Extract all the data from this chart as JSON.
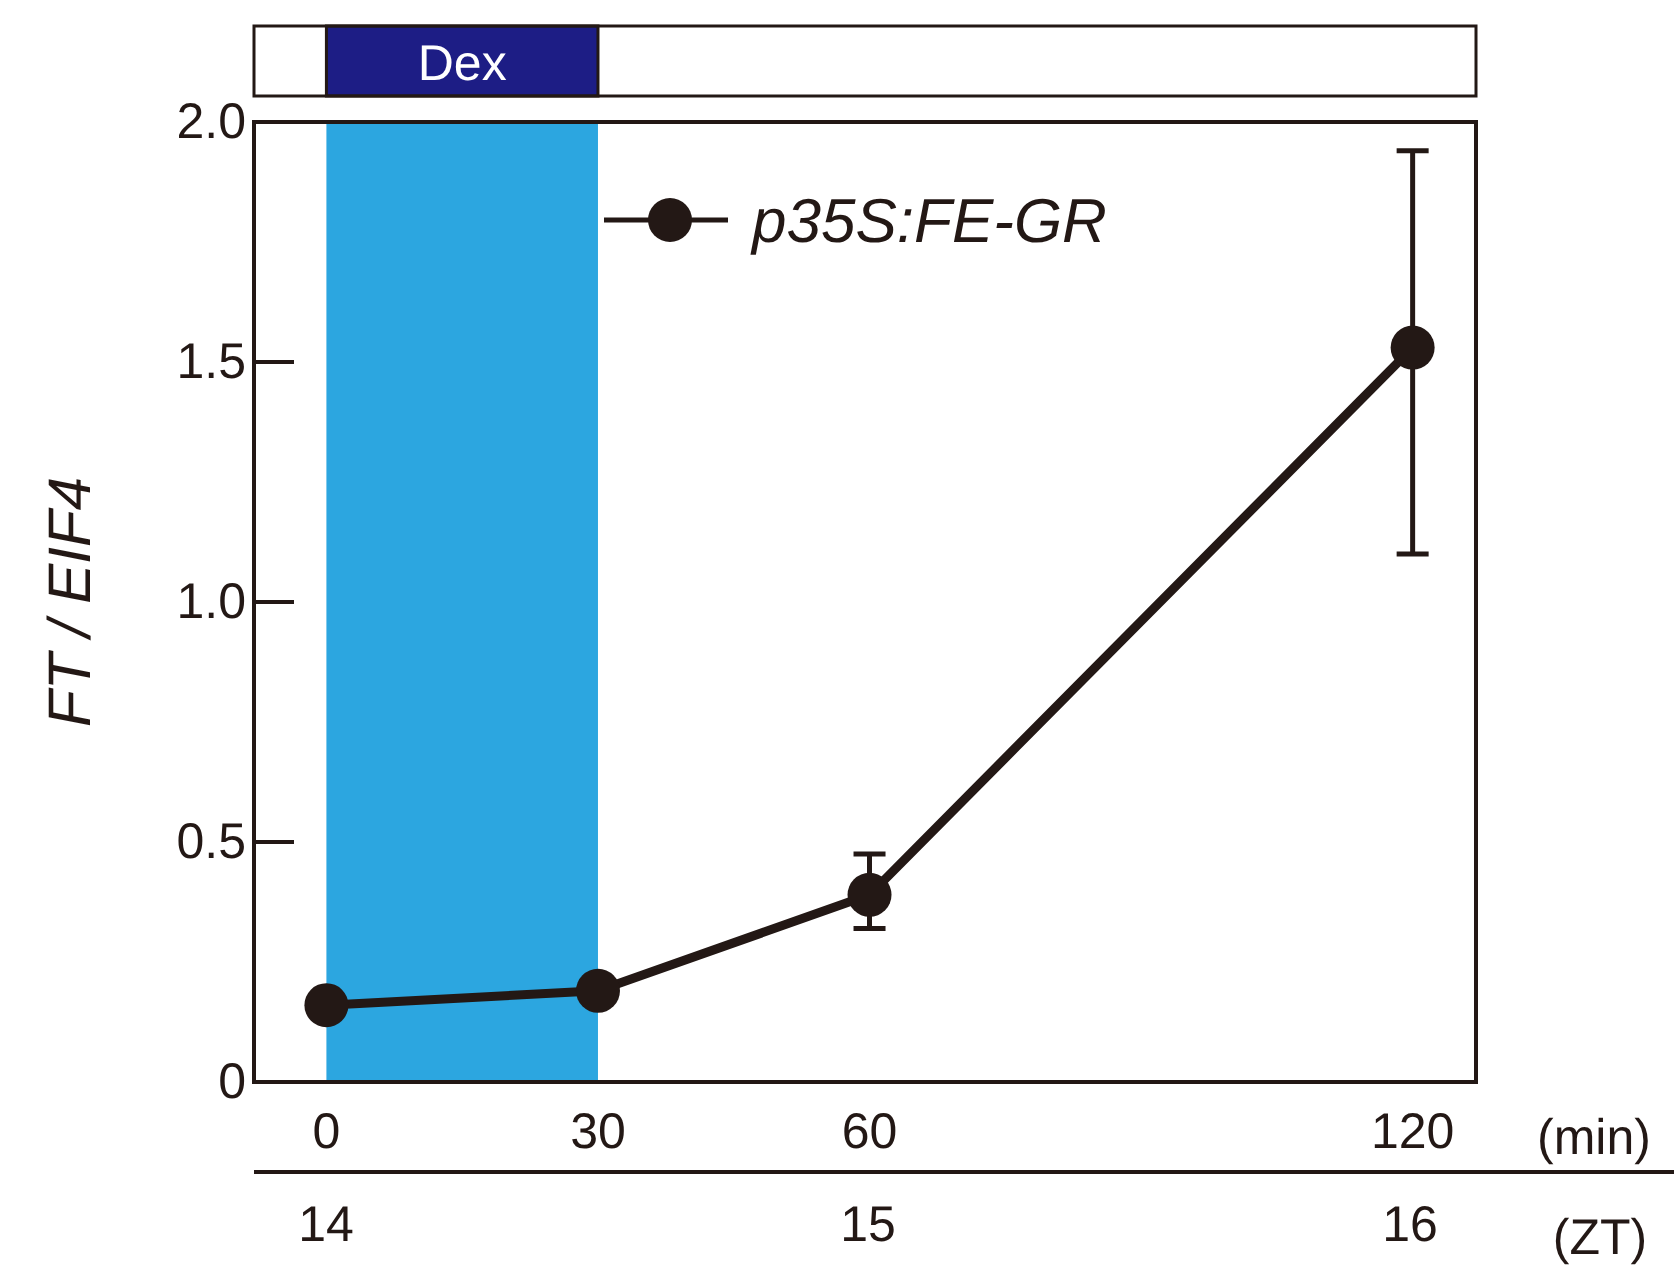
{
  "chart_data": {
    "type": "line",
    "x": [
      0,
      30,
      60,
      120
    ],
    "series": [
      {
        "name": "p35S:FE-GR",
        "color": "#231815",
        "values": [
          0.16,
          0.19,
          0.39,
          1.53
        ],
        "errors": [
          null,
          null,
          [
            0.32,
            0.475
          ],
          [
            1.1,
            1.94
          ]
        ]
      }
    ],
    "xlim": [
      -8,
      127
    ],
    "xticks": [
      0,
      30,
      60,
      120
    ],
    "xlabel": "(min)",
    "x2lim": [
      13.867,
      16.487
    ],
    "x2ticks": [
      14,
      15,
      16
    ],
    "x2label": "(ZT)",
    "ylim": [
      0,
      2
    ],
    "yticks": [
      0,
      0.5,
      {
        "value": 1,
        "label": "1.0"
      },
      1.5,
      {
        "value": 2,
        "label": "2.0"
      }
    ],
    "ylabel": "FT / EIF4",
    "bands": [
      {
        "axis": "x",
        "from": 0,
        "to": 30,
        "label": "Dex",
        "color": "#2ca6e0"
      }
    ],
    "legend": "top",
    "marker": "circle",
    "line_style": "solid"
  }
}
